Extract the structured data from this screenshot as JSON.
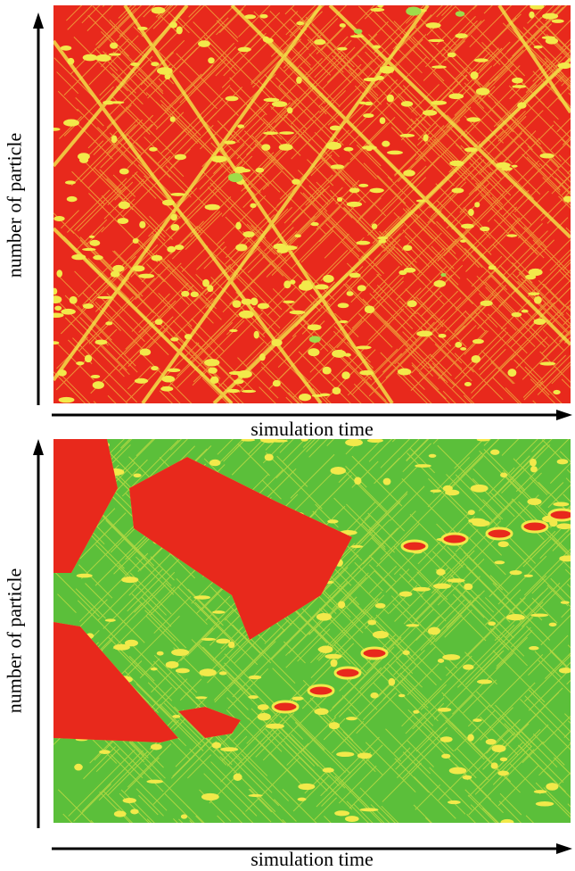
{
  "panels": [
    {
      "y_label": "number of particle",
      "x_label": "simulation time",
      "dominant_state": "red",
      "colors": {
        "red": "#e8291c",
        "yellow": "#f2e94a",
        "green": "#5bbf3a"
      }
    },
    {
      "y_label": "number of particle",
      "x_label": "simulation time",
      "dominant_state": "green",
      "colors": {
        "red": "#e8291c",
        "yellow": "#f2e94a",
        "green": "#5bbf3a"
      }
    }
  ]
}
